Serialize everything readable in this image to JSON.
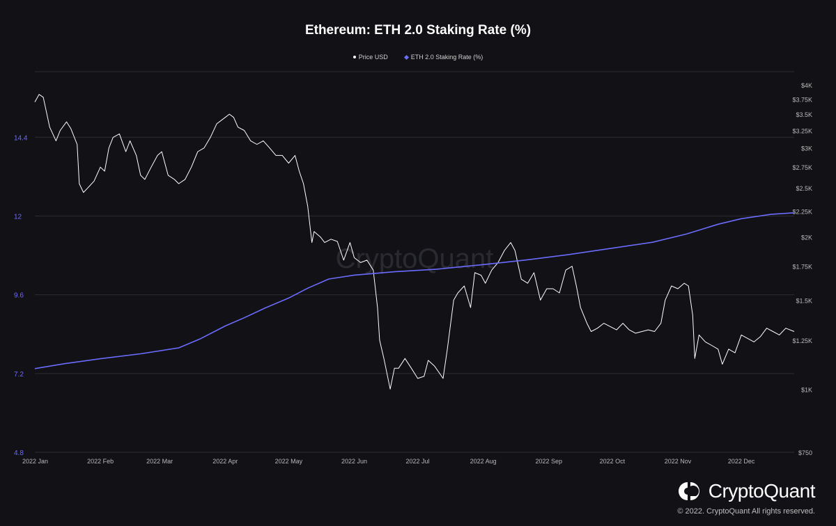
{
  "title": "Ethereum: ETH 2.0 Staking Rate (%)",
  "legend": [
    {
      "label": "Price USD",
      "color": "#ffffff",
      "marker": "dot"
    },
    {
      "label": "ETH 2.0 Staking Rate (%)",
      "color": "#6b6bff",
      "marker": "diamond"
    }
  ],
  "watermark": "CryptoQuant",
  "brand": {
    "name": "CryptoQuant",
    "copyright": "© 2022. CryptoQuant All rights reserved."
  },
  "chart_data": {
    "type": "line",
    "title": "Ethereum: ETH 2.0 Staking Rate (%)",
    "x_range": [
      "2022-01-01",
      "2022-12-26"
    ],
    "x_ticks": [
      "2022 Jan",
      "2022 Feb",
      "2022 Mar",
      "2022 Apr",
      "2022 May",
      "2022 Jun",
      "2022 Jul",
      "2022 Aug",
      "2022 Sep",
      "2022 Oct",
      "2022 Nov",
      "2022 Dec"
    ],
    "y_left": {
      "ticks": [
        "4.8",
        "7.2",
        "9.6",
        "12",
        "14.4"
      ],
      "range": [
        4.8,
        16.4
      ],
      "color": "#6b6bff"
    },
    "y_right": {
      "ticks": [
        "$750",
        "$1K",
        "$1.25K",
        "$1.5K",
        "$1.75K",
        "$2K",
        "$2.25K",
        "$2.5K",
        "$2.75K",
        "$3K",
        "$3.25K",
        "$3.5K",
        "$3.75K",
        "$4K"
      ],
      "scale": "log",
      "range": [
        750,
        4000
      ]
    },
    "grid": true,
    "legend_position": "top-center",
    "series": [
      {
        "name": "Price USD",
        "axis": "right",
        "color": "#ffffff",
        "points": [
          [
            "2022-01-01",
            3700
          ],
          [
            "2022-01-03",
            3830
          ],
          [
            "2022-01-05",
            3780
          ],
          [
            "2022-01-08",
            3300
          ],
          [
            "2022-01-11",
            3100
          ],
          [
            "2022-01-13",
            3250
          ],
          [
            "2022-01-16",
            3380
          ],
          [
            "2022-01-18",
            3280
          ],
          [
            "2022-01-21",
            3050
          ],
          [
            "2022-01-22",
            2550
          ],
          [
            "2022-01-24",
            2450
          ],
          [
            "2022-01-26",
            2500
          ],
          [
            "2022-01-29",
            2580
          ],
          [
            "2022-02-01",
            2750
          ],
          [
            "2022-02-03",
            2700
          ],
          [
            "2022-02-05",
            3000
          ],
          [
            "2022-02-07",
            3150
          ],
          [
            "2022-02-10",
            3200
          ],
          [
            "2022-02-13",
            2950
          ],
          [
            "2022-02-15",
            3100
          ],
          [
            "2022-02-18",
            2900
          ],
          [
            "2022-02-20",
            2650
          ],
          [
            "2022-02-22",
            2600
          ],
          [
            "2022-02-25",
            2750
          ],
          [
            "2022-02-28",
            2900
          ],
          [
            "2022-03-02",
            2950
          ],
          [
            "2022-03-05",
            2650
          ],
          [
            "2022-03-08",
            2600
          ],
          [
            "2022-03-10",
            2550
          ],
          [
            "2022-03-13",
            2600
          ],
          [
            "2022-03-16",
            2750
          ],
          [
            "2022-03-19",
            2950
          ],
          [
            "2022-03-22",
            3000
          ],
          [
            "2022-03-25",
            3150
          ],
          [
            "2022-03-28",
            3350
          ],
          [
            "2022-03-30",
            3400
          ],
          [
            "2022-04-01",
            3450
          ],
          [
            "2022-04-03",
            3500
          ],
          [
            "2022-04-05",
            3450
          ],
          [
            "2022-04-07",
            3300
          ],
          [
            "2022-04-10",
            3250
          ],
          [
            "2022-04-13",
            3100
          ],
          [
            "2022-04-16",
            3050
          ],
          [
            "2022-04-19",
            3100
          ],
          [
            "2022-04-22",
            3000
          ],
          [
            "2022-04-25",
            2900
          ],
          [
            "2022-04-28",
            2900
          ],
          [
            "2022-05-01",
            2800
          ],
          [
            "2022-05-04",
            2900
          ],
          [
            "2022-05-06",
            2700
          ],
          [
            "2022-05-08",
            2550
          ],
          [
            "2022-05-10",
            2300
          ],
          [
            "2022-05-12",
            1950
          ],
          [
            "2022-05-13",
            2050
          ],
          [
            "2022-05-16",
            2000
          ],
          [
            "2022-05-18",
            1950
          ],
          [
            "2022-05-21",
            1980
          ],
          [
            "2022-05-24",
            1960
          ],
          [
            "2022-05-27",
            1800
          ],
          [
            "2022-05-30",
            1950
          ],
          [
            "2022-06-01",
            1820
          ],
          [
            "2022-06-04",
            1780
          ],
          [
            "2022-06-07",
            1800
          ],
          [
            "2022-06-10",
            1720
          ],
          [
            "2022-06-12",
            1450
          ],
          [
            "2022-06-13",
            1250
          ],
          [
            "2022-06-15",
            1150
          ],
          [
            "2022-06-18",
            1000
          ],
          [
            "2022-06-20",
            1100
          ],
          [
            "2022-06-22",
            1100
          ],
          [
            "2022-06-25",
            1150
          ],
          [
            "2022-06-28",
            1100
          ],
          [
            "2022-07-01",
            1050
          ],
          [
            "2022-07-04",
            1060
          ],
          [
            "2022-07-06",
            1140
          ],
          [
            "2022-07-09",
            1110
          ],
          [
            "2022-07-11",
            1080
          ],
          [
            "2022-07-13",
            1050
          ],
          [
            "2022-07-15",
            1200
          ],
          [
            "2022-07-18",
            1500
          ],
          [
            "2022-07-20",
            1550
          ],
          [
            "2022-07-23",
            1600
          ],
          [
            "2022-07-26",
            1450
          ],
          [
            "2022-07-28",
            1700
          ],
          [
            "2022-07-31",
            1680
          ],
          [
            "2022-08-02",
            1620
          ],
          [
            "2022-08-05",
            1720
          ],
          [
            "2022-08-08",
            1780
          ],
          [
            "2022-08-11",
            1880
          ],
          [
            "2022-08-14",
            1950
          ],
          [
            "2022-08-16",
            1880
          ],
          [
            "2022-08-19",
            1650
          ],
          [
            "2022-08-22",
            1620
          ],
          [
            "2022-08-25",
            1700
          ],
          [
            "2022-08-28",
            1500
          ],
          [
            "2022-08-31",
            1580
          ],
          [
            "2022-09-03",
            1580
          ],
          [
            "2022-09-06",
            1550
          ],
          [
            "2022-09-09",
            1720
          ],
          [
            "2022-09-12",
            1750
          ],
          [
            "2022-09-14",
            1600
          ],
          [
            "2022-09-16",
            1450
          ],
          [
            "2022-09-19",
            1350
          ],
          [
            "2022-09-21",
            1300
          ],
          [
            "2022-09-24",
            1320
          ],
          [
            "2022-09-27",
            1350
          ],
          [
            "2022-09-30",
            1330
          ],
          [
            "2022-10-03",
            1310
          ],
          [
            "2022-10-06",
            1350
          ],
          [
            "2022-10-09",
            1310
          ],
          [
            "2022-10-12",
            1290
          ],
          [
            "2022-10-15",
            1300
          ],
          [
            "2022-10-18",
            1310
          ],
          [
            "2022-10-21",
            1300
          ],
          [
            "2022-10-24",
            1350
          ],
          [
            "2022-10-26",
            1500
          ],
          [
            "2022-10-29",
            1600
          ],
          [
            "2022-11-01",
            1580
          ],
          [
            "2022-11-04",
            1620
          ],
          [
            "2022-11-06",
            1600
          ],
          [
            "2022-11-08",
            1400
          ],
          [
            "2022-11-09",
            1150
          ],
          [
            "2022-11-11",
            1280
          ],
          [
            "2022-11-14",
            1240
          ],
          [
            "2022-11-17",
            1220
          ],
          [
            "2022-11-20",
            1200
          ],
          [
            "2022-11-22",
            1120
          ],
          [
            "2022-11-25",
            1200
          ],
          [
            "2022-11-28",
            1180
          ],
          [
            "2022-12-01",
            1280
          ],
          [
            "2022-12-04",
            1260
          ],
          [
            "2022-12-07",
            1240
          ],
          [
            "2022-12-10",
            1270
          ],
          [
            "2022-12-13",
            1320
          ],
          [
            "2022-12-16",
            1300
          ],
          [
            "2022-12-19",
            1280
          ],
          [
            "2022-12-22",
            1320
          ],
          [
            "2022-12-26",
            1300
          ]
        ]
      },
      {
        "name": "ETH 2.0 Staking Rate (%)",
        "axis": "left",
        "color": "#6b6bff",
        "points": [
          [
            "2022-01-01",
            7.35
          ],
          [
            "2022-01-15",
            7.5
          ],
          [
            "2022-02-01",
            7.65
          ],
          [
            "2022-02-20",
            7.8
          ],
          [
            "2022-03-10",
            7.98
          ],
          [
            "2022-03-20",
            8.25
          ],
          [
            "2022-04-01",
            8.65
          ],
          [
            "2022-04-10",
            8.9
          ],
          [
            "2022-04-20",
            9.2
          ],
          [
            "2022-05-01",
            9.5
          ],
          [
            "2022-05-10",
            9.8
          ],
          [
            "2022-05-20",
            10.08
          ],
          [
            "2022-06-01",
            10.2
          ],
          [
            "2022-06-20",
            10.3
          ],
          [
            "2022-07-10",
            10.38
          ],
          [
            "2022-08-01",
            10.52
          ],
          [
            "2022-08-20",
            10.65
          ],
          [
            "2022-09-10",
            10.82
          ],
          [
            "2022-10-01",
            11.02
          ],
          [
            "2022-10-20",
            11.2
          ],
          [
            "2022-11-05",
            11.45
          ],
          [
            "2022-11-20",
            11.75
          ],
          [
            "2022-12-01",
            11.92
          ],
          [
            "2022-12-15",
            12.05
          ],
          [
            "2022-12-26",
            12.1
          ]
        ]
      }
    ]
  }
}
